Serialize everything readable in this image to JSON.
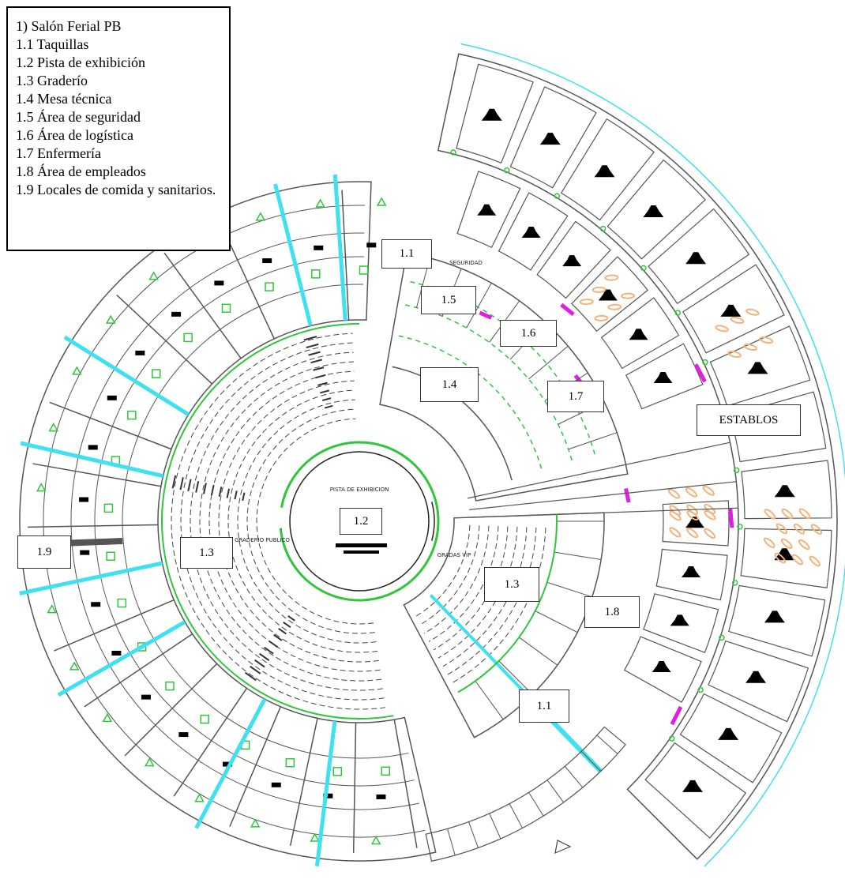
{
  "legend": {
    "title": "1) Salón Ferial PB",
    "items": [
      "1.1 Taquillas",
      "1.2 Pista de exhibición",
      "1.3 Graderío",
      "1.4 Mesa técnica",
      "1.5 Área de seguridad",
      "1.6 Área de logística",
      "1.7 Enfermería",
      "1.8 Área de empleados",
      "1.9 Locales de comida y sanitarios."
    ]
  },
  "labels": [
    "1.1",
    "1.5",
    "1.6",
    "1.4",
    "1.7",
    "ESTABLOS",
    "1.2",
    "1.9",
    "1.3",
    "1.3",
    "1.8",
    "1.1"
  ],
  "plan_texts": {
    "arena": "PISTA DE EXHIBICION",
    "public_stands": "GRADERIO PUBLICO",
    "vip_stands": "GRADAS VIP",
    "security": "SEGURIDAD"
  }
}
